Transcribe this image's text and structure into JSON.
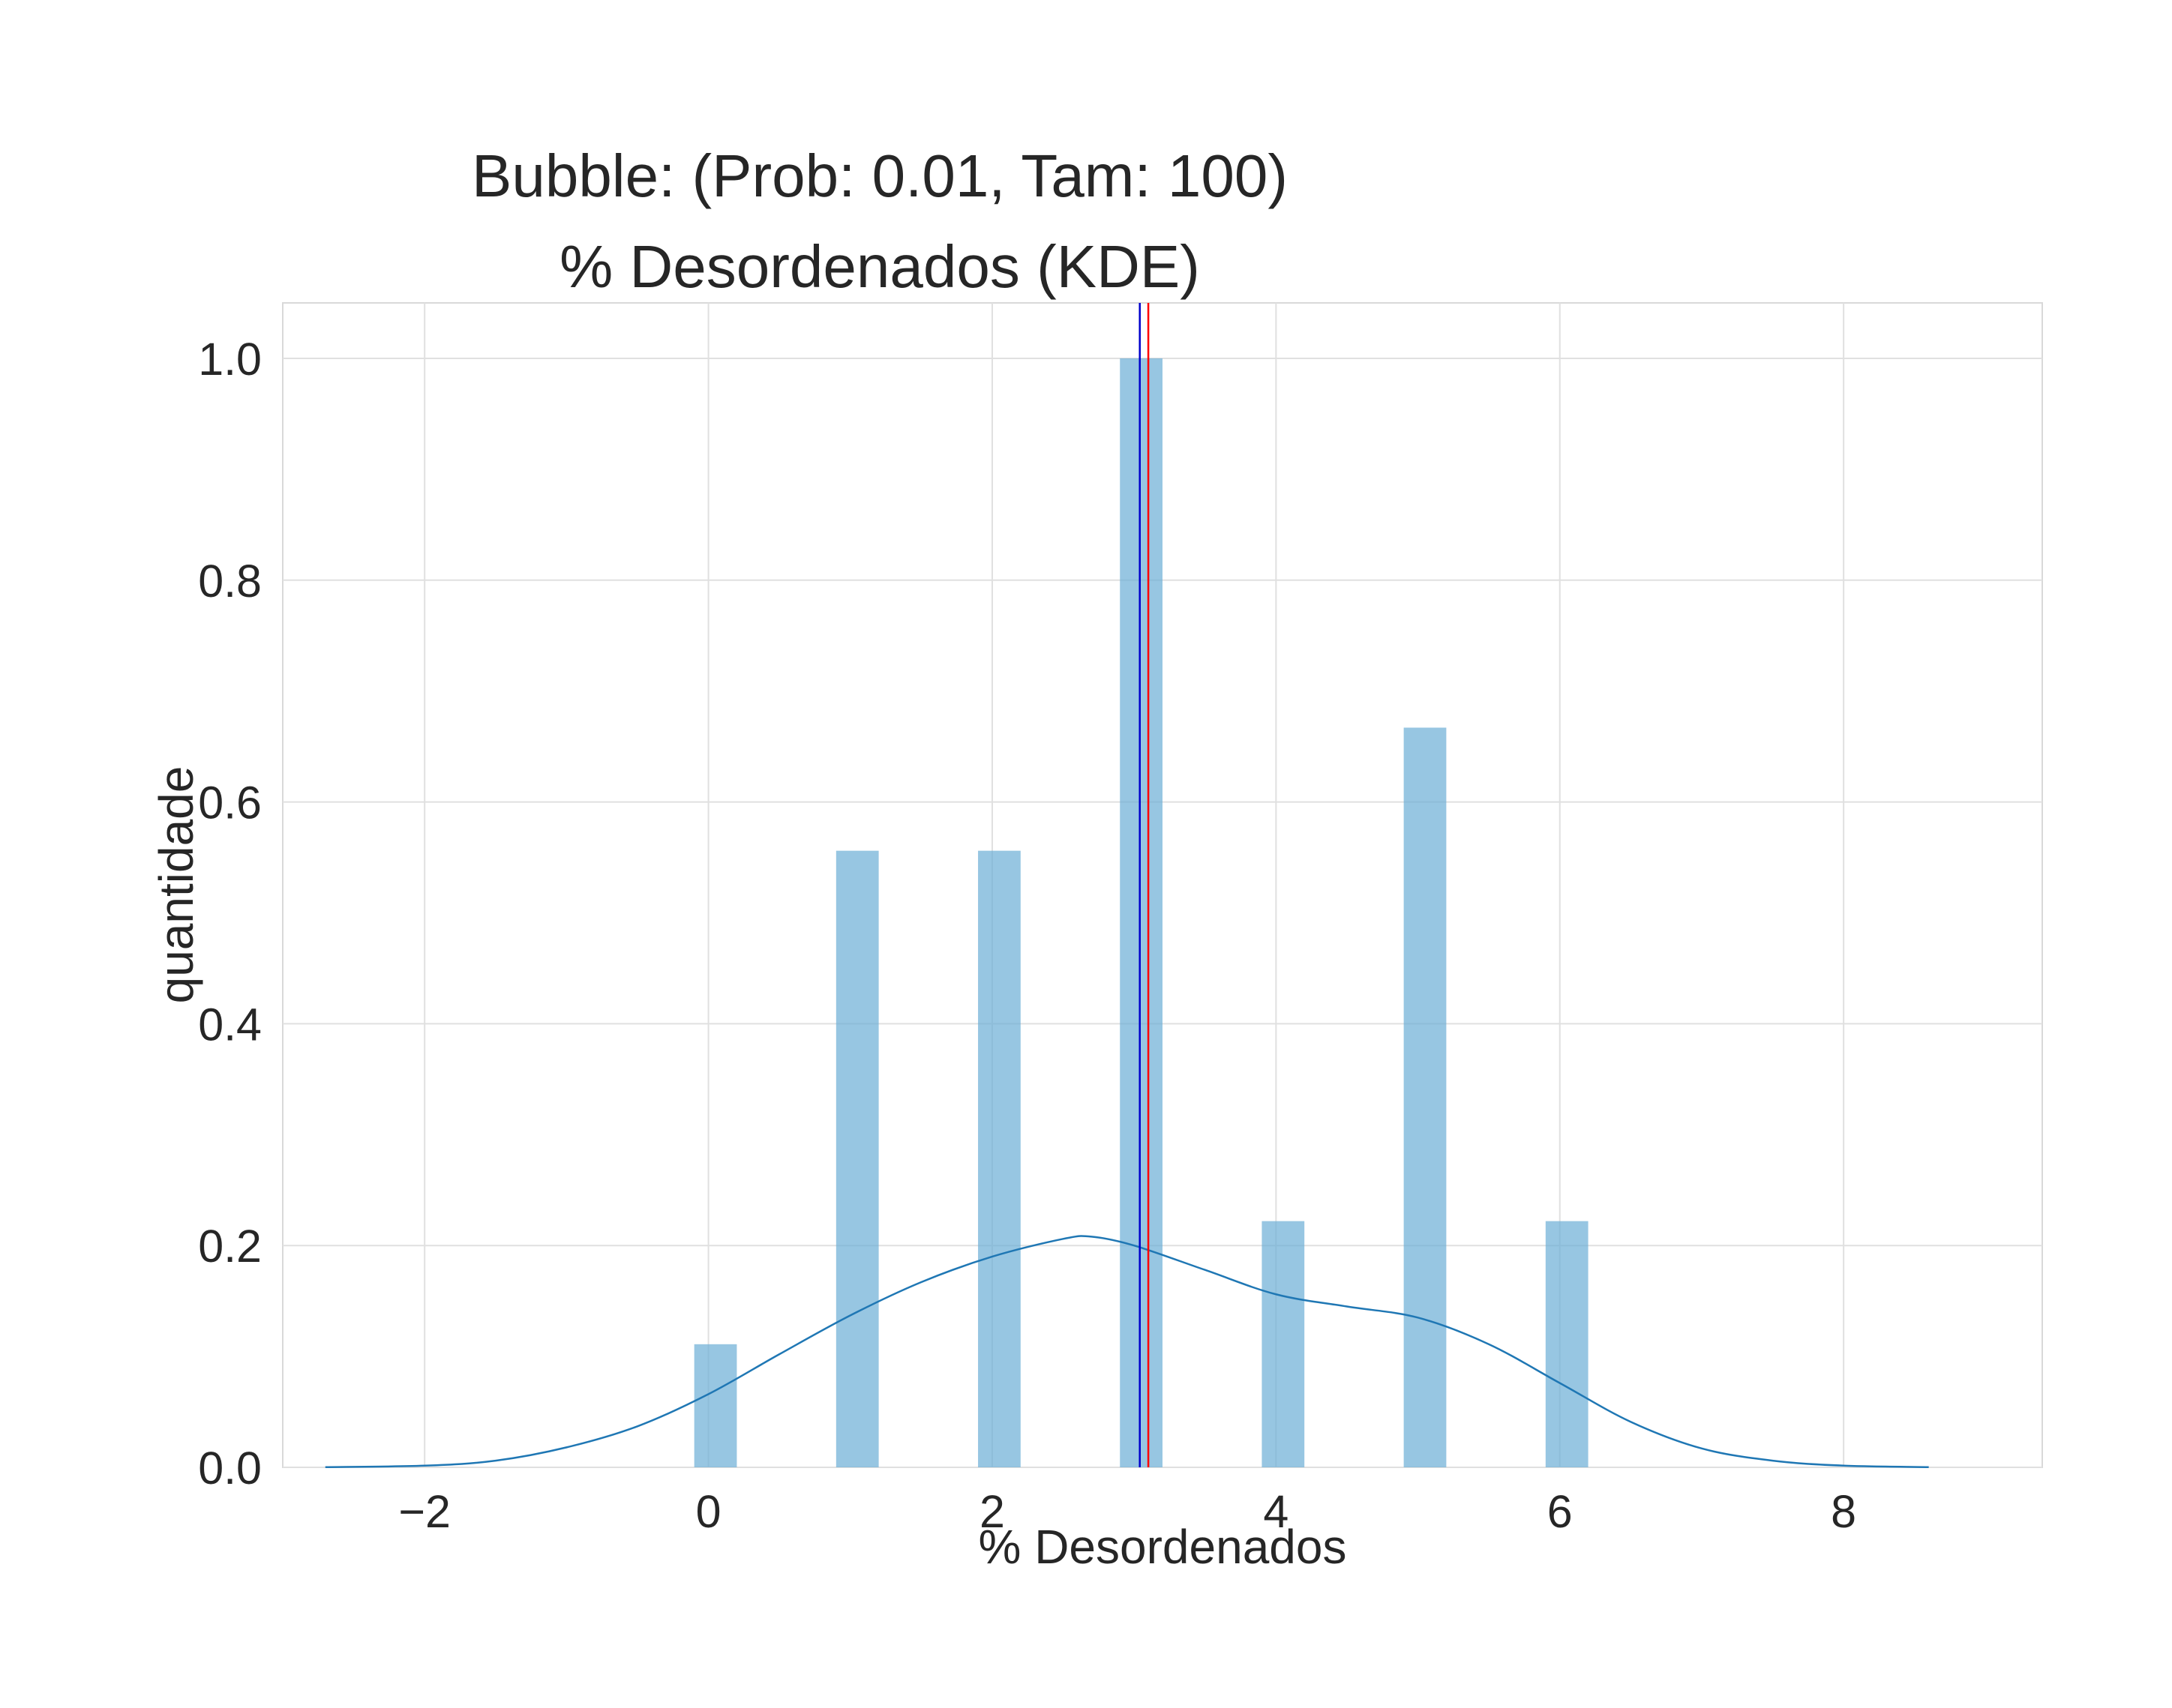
{
  "chart_data": {
    "type": "bar",
    "title": "Bubble: (Prob: 0.01, Tam: 100)",
    "subtitle": "% Desordenados (KDE)",
    "xlabel": "% Desordenados",
    "ylabel": "quantidade",
    "xlim": [
      -3.0,
      9.4
    ],
    "ylim": [
      0.0,
      1.05
    ],
    "xticks": [
      -2,
      0,
      2,
      4,
      6,
      8
    ],
    "xtick_labels": [
      "−2",
      "0",
      "2",
      "4",
      "6",
      "8"
    ],
    "yticks": [
      0.0,
      0.2,
      0.4,
      0.6,
      0.8,
      1.0
    ],
    "ytick_labels": [
      "0.0",
      "0.2",
      "0.4",
      "0.6",
      "0.8",
      "1.0"
    ],
    "grid": true,
    "bars": {
      "color": "#6baed6",
      "width": 0.3,
      "x": [
        0,
        1,
        2,
        3,
        4,
        5,
        6
      ],
      "values": [
        0.111,
        0.556,
        0.556,
        1.0,
        0.222,
        0.667,
        0.222
      ]
    },
    "kde": {
      "color": "#1f77b4",
      "x": [
        -2.7,
        -2.0,
        -1.5,
        -1.0,
        -0.5,
        0.0,
        0.5,
        1.0,
        1.5,
        2.0,
        2.5,
        2.7,
        3.0,
        3.5,
        4.0,
        4.5,
        5.0,
        5.5,
        6.0,
        6.5,
        7.0,
        7.5,
        8.0,
        8.6
      ],
      "y": [
        0.0002,
        0.0015,
        0.006,
        0.018,
        0.037,
        0.066,
        0.102,
        0.137,
        0.167,
        0.19,
        0.206,
        0.208,
        0.2,
        0.178,
        0.156,
        0.145,
        0.135,
        0.111,
        0.076,
        0.041,
        0.017,
        0.006,
        0.0015,
        0.0002
      ]
    },
    "vlines": [
      {
        "x": 3.04,
        "color": "#0000cc"
      },
      {
        "x": 3.1,
        "color": "#ff0000"
      }
    ]
  }
}
